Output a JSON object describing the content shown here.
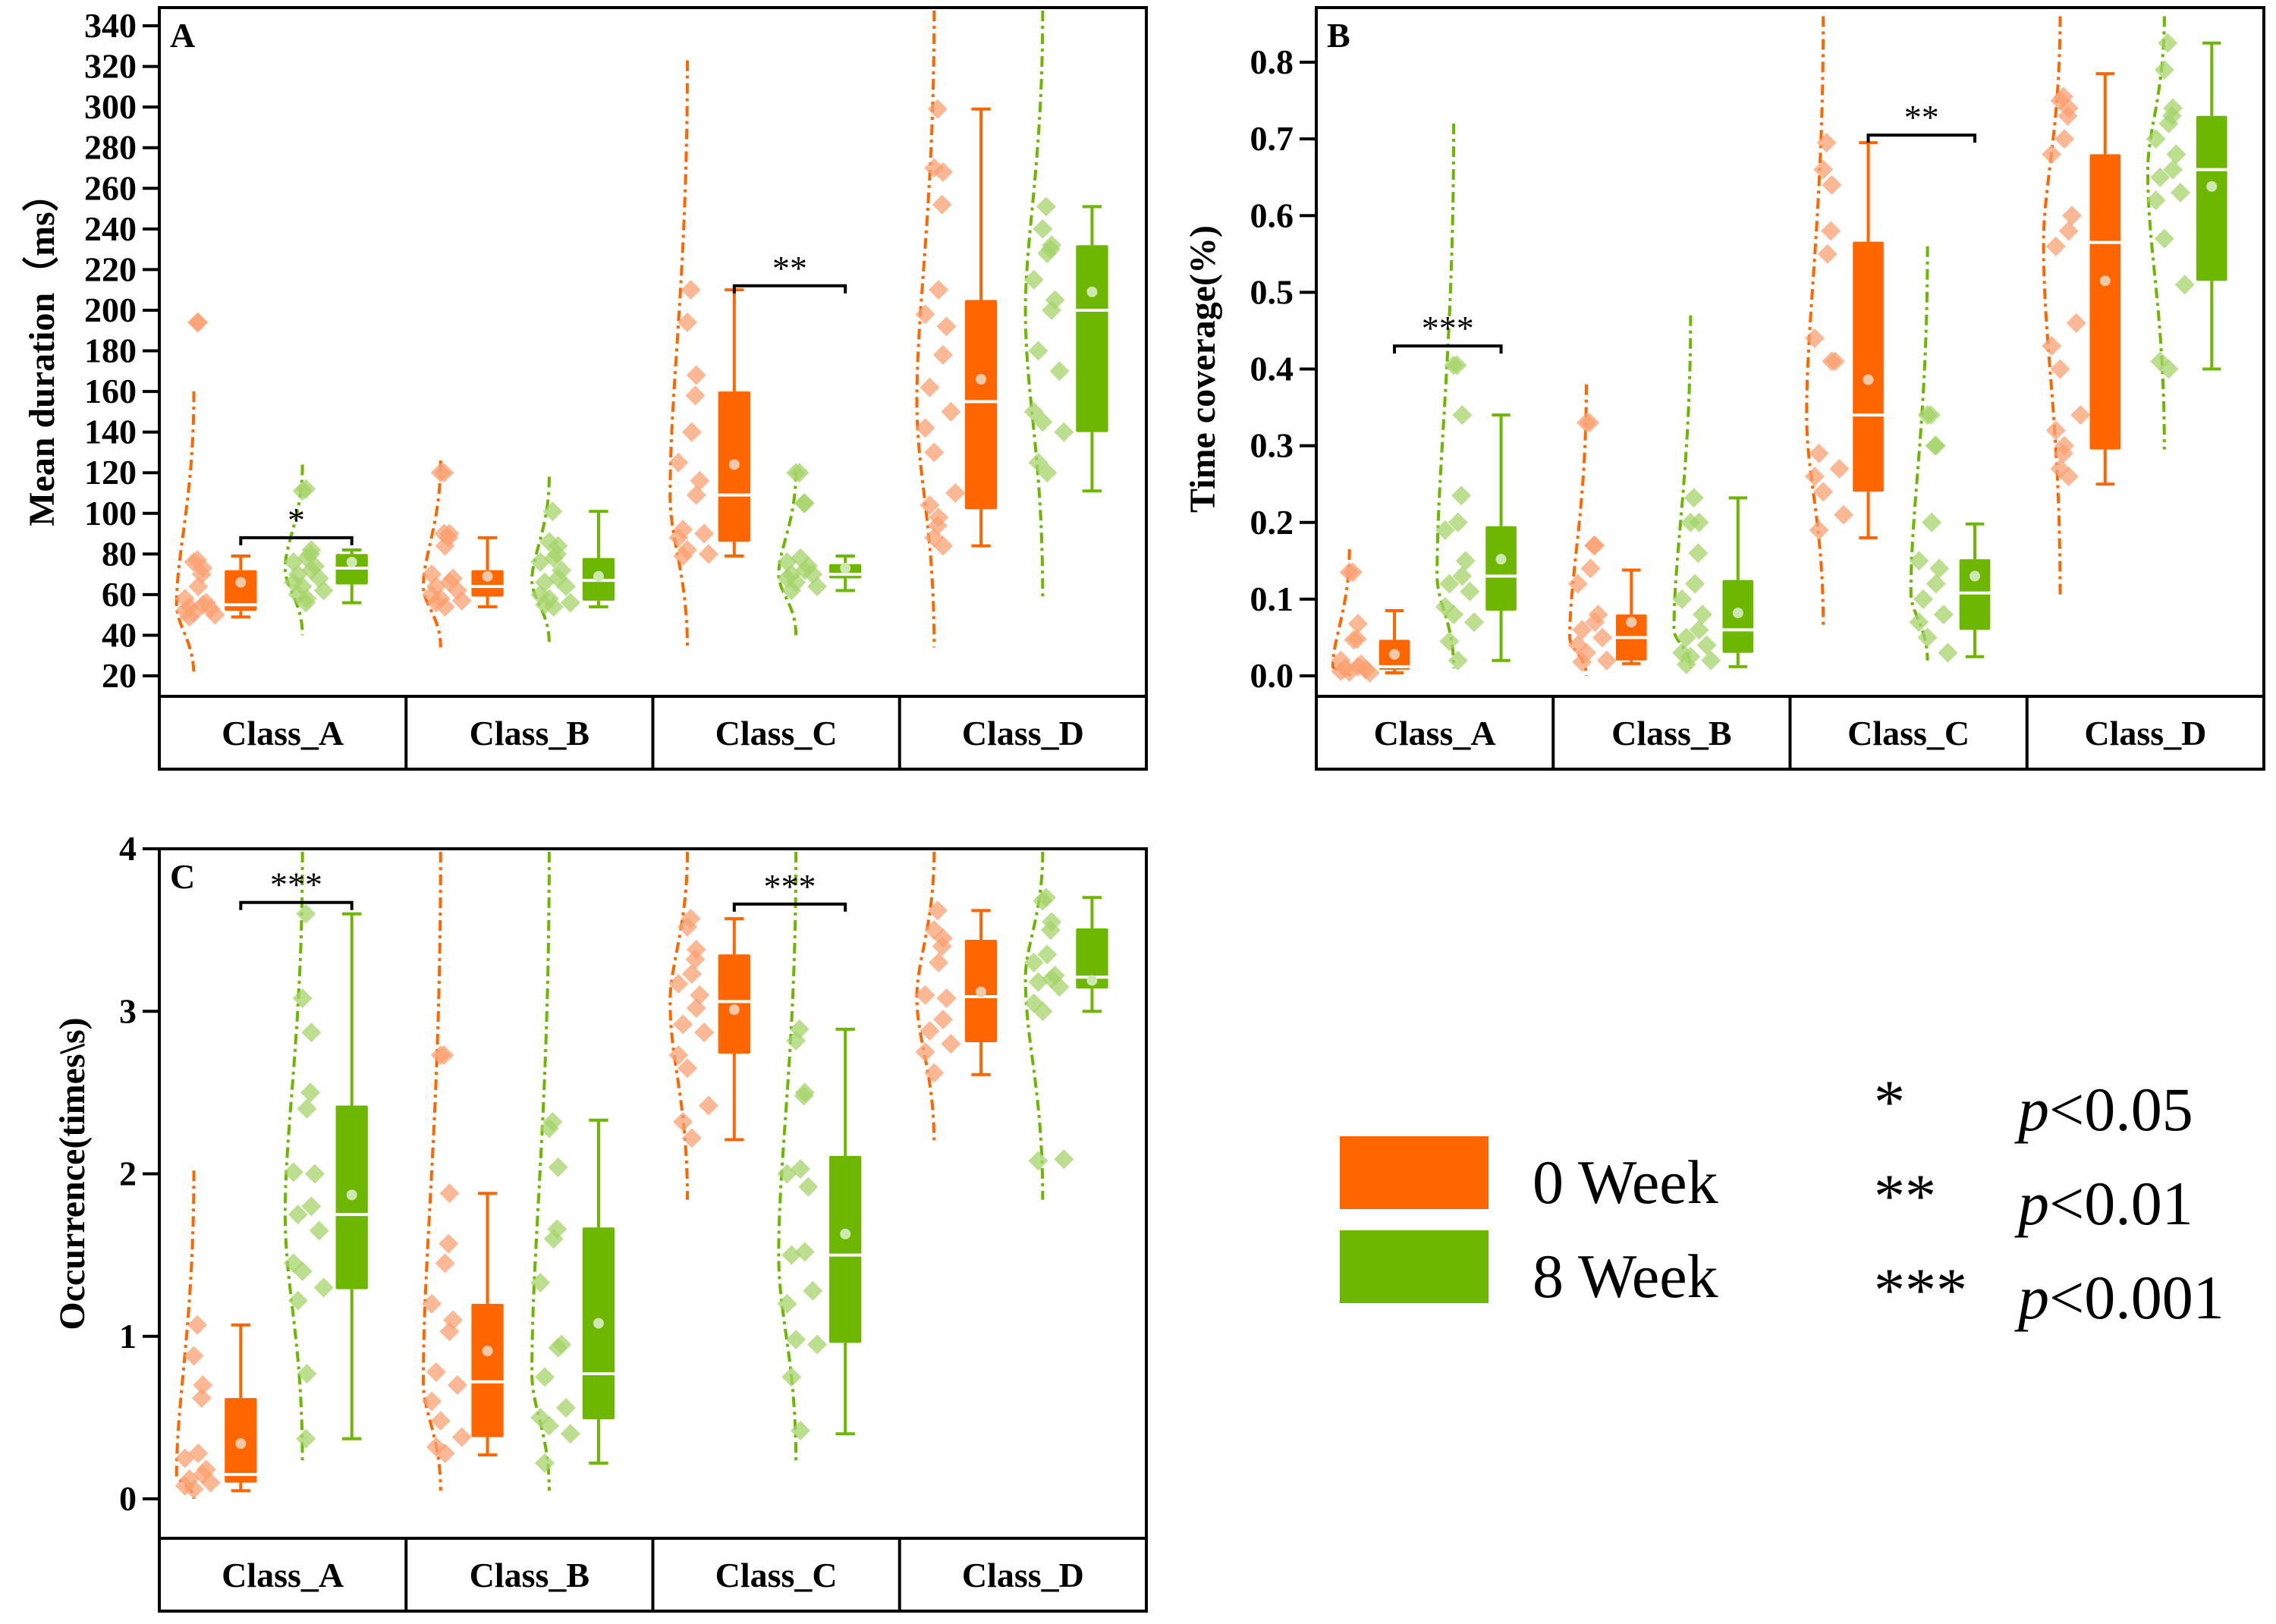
{
  "colors": {
    "week0": "#FF6600",
    "week0_point": "#F9A070",
    "week8": "#6EB700",
    "week8_point": "#A5D46A",
    "median": "#FFFFFF",
    "mean_dot": "#F4C9A8",
    "mean_dot_green": "#CFE8B2",
    "axis": "#000000"
  },
  "legend": {
    "groups": [
      {
        "label": "0 Week",
        "color_key": "week0"
      },
      {
        "label": "8 Week",
        "color_key": "week8"
      }
    ],
    "significance": [
      {
        "stars": "*",
        "p": "p",
        "text": "<0.05"
      },
      {
        "stars": "**",
        "p": "p",
        "text": "<0.01"
      },
      {
        "stars": "***",
        "p": "p",
        "text": "<0.001"
      }
    ]
  },
  "chart_data": [
    {
      "type": "box",
      "panel": "A",
      "title": "",
      "ylabel": "Mean duration（ms）",
      "xlabel": "",
      "ylim": [
        20,
        340
      ],
      "yticks": [
        20,
        40,
        60,
        80,
        100,
        120,
        140,
        160,
        180,
        200,
        220,
        240,
        260,
        280,
        300,
        320,
        340
      ],
      "categories": [
        "Class_A",
        "Class_B",
        "Class_C",
        "Class_D"
      ],
      "series": [
        {
          "name": "0 Week",
          "boxes": [
            {
              "min": 49,
              "q1": 52,
              "median": 55,
              "q3": 72,
              "max": 79,
              "mean": 66,
              "points": [
                77,
                76,
                73,
                70,
                64,
                58,
                56,
                55,
                54,
                53,
                52,
                51,
                50,
                49,
                194,
                194
              ],
              "kde": [
                20,
                160
              ]
            },
            {
              "min": 54,
              "q1": 59,
              "median": 64,
              "q3": 72,
              "max": 88,
              "mean": 69,
              "points": [
                120,
                120,
                90,
                88,
                84,
                70,
                68,
                66,
                64,
                62,
                60,
                58,
                57,
                56,
                54,
                90
              ],
              "kde": [
                34,
                126
              ]
            },
            {
              "min": 79,
              "q1": 86,
              "median": 109,
              "q3": 160,
              "max": 210,
              "mean": 124,
              "points": [
                210,
                194,
                168,
                158,
                140,
                125,
                116,
                109,
                92,
                90,
                88,
                82,
                80,
                79
              ],
              "kde": [
                33,
                323
              ]
            },
            {
              "min": 84,
              "q1": 102,
              "median": 155,
              "q3": 205,
              "max": 299,
              "mean": 166,
              "points": [
                299,
                270,
                268,
                252,
                210,
                198,
                192,
                178,
                162,
                150,
                142,
                130,
                110,
                104,
                98,
                94,
                88,
                84
              ],
              "kde": [
                34,
                360
              ]
            }
          ],
          "kde_center_offset": -0.32
        },
        {
          "name": "8 Week",
          "boxes": [
            {
              "min": 56,
              "q1": 65,
              "median": 73,
              "q3": 80,
              "max": 82,
              "mean": 76,
              "points": [
                112,
                111,
                82,
                80,
                78,
                76,
                74,
                72,
                70,
                68,
                66,
                64,
                62,
                60,
                58,
                56
              ],
              "kde": [
                40,
                124
              ]
            },
            {
              "min": 54,
              "q1": 57,
              "median": 67,
              "q3": 78,
              "max": 101,
              "mean": 69,
              "points": [
                101,
                86,
                84,
                80,
                78,
                76,
                72,
                68,
                66,
                64,
                60,
                58,
                56,
                55,
                54
              ],
              "kde": [
                36,
                118
              ]
            },
            {
              "min": 62,
              "q1": 68,
              "median": 70,
              "q3": 75,
              "max": 79,
              "mean": 73,
              "points": [
                120,
                120,
                105,
                105,
                78,
                76,
                74,
                72,
                70,
                70,
                68,
                66,
                64,
                62
              ],
              "kde": [
                40,
                121
              ]
            },
            {
              "min": 111,
              "q1": 140,
              "median": 200,
              "q3": 232,
              "max": 251,
              "mean": 209,
              "points": [
                251,
                240,
                232,
                230,
                228,
                215,
                205,
                200,
                180,
                170,
                150,
                145,
                140,
                125,
                120
              ],
              "kde": [
                58,
                360
              ]
            }
          ],
          "kde_center_offset": -0.32
        }
      ],
      "significance": [
        {
          "category": "Class_A",
          "label": "*",
          "y": 88
        },
        {
          "category": "Class_C",
          "label": "**",
          "y": 212
        }
      ]
    },
    {
      "type": "box",
      "panel": "B",
      "title": "",
      "ylabel": "Time coverage(%)",
      "xlabel": "",
      "ylim": [
        0.0,
        0.8
      ],
      "yticks": [
        0.0,
        0.1,
        0.2,
        0.3,
        0.4,
        0.5,
        0.6,
        0.7,
        0.8
      ],
      "categories": [
        "Class_A",
        "Class_B",
        "Class_C",
        "Class_D"
      ],
      "series": [
        {
          "name": "0 Week",
          "boxes": [
            {
              "min": 0.004,
              "q1": 0.008,
              "median": 0.012,
              "q3": 0.047,
              "max": 0.085,
              "mean": 0.028,
              "points": [
                0.135,
                0.135,
                0.068,
                0.048,
                0.047,
                0.02,
                0.015,
                0.012,
                0.01,
                0.008,
                0.006,
                0.005,
                0.004
              ],
              "kde": [
                0.0,
                0.165
              ]
            },
            {
              "min": 0.016,
              "q1": 0.02,
              "median": 0.05,
              "q3": 0.08,
              "max": 0.138,
              "mean": 0.07,
              "points": [
                0.33,
                0.33,
                0.17,
                0.17,
                0.14,
                0.12,
                0.08,
                0.07,
                0.06,
                0.05,
                0.04,
                0.03,
                0.02,
                0.018
              ],
              "kde": [
                0.0,
                0.38
              ]
            },
            {
              "min": 0.18,
              "q1": 0.24,
              "median": 0.34,
              "q3": 0.566,
              "max": 0.695,
              "mean": 0.386,
              "points": [
                0.695,
                0.66,
                0.64,
                0.58,
                0.55,
                0.44,
                0.41,
                0.41,
                0.29,
                0.27,
                0.26,
                0.24,
                0.21,
                0.19
              ],
              "kde": [
                0.065,
                0.86
              ]
            },
            {
              "min": 0.25,
              "q1": 0.295,
              "median": 0.565,
              "q3": 0.68,
              "max": 0.785,
              "mean": 0.515,
              "points": [
                0.755,
                0.75,
                0.74,
                0.73,
                0.7,
                0.68,
                0.6,
                0.58,
                0.56,
                0.46,
                0.43,
                0.4,
                0.34,
                0.32,
                0.3,
                0.29,
                0.27,
                0.26
              ],
              "kde": [
                0.105,
                0.86
              ]
            }
          ]
        },
        {
          "name": "8 Week",
          "boxes": [
            {
              "min": 0.02,
              "q1": 0.085,
              "median": 0.13,
              "q3": 0.195,
              "max": 0.34,
              "mean": 0.152,
              "points": [
                0.405,
                0.405,
                0.34,
                0.235,
                0.2,
                0.19,
                0.15,
                0.13,
                0.12,
                0.11,
                0.09,
                0.08,
                0.07,
                0.045,
                0.02
              ],
              "kde": [
                0.01,
                0.72
              ]
            },
            {
              "min": 0.012,
              "q1": 0.03,
              "median": 0.06,
              "q3": 0.125,
              "max": 0.232,
              "mean": 0.082,
              "points": [
                0.232,
                0.2,
                0.2,
                0.16,
                0.12,
                0.1,
                0.08,
                0.06,
                0.05,
                0.04,
                0.03,
                0.025,
                0.02,
                0.015
              ],
              "kde": [
                0.01,
                0.47
              ]
            },
            {
              "min": 0.025,
              "q1": 0.06,
              "median": 0.108,
              "q3": 0.152,
              "max": 0.198,
              "mean": 0.13,
              "points": [
                0.34,
                0.34,
                0.3,
                0.3,
                0.2,
                0.15,
                0.14,
                0.12,
                0.1,
                0.08,
                0.07,
                0.05,
                0.03
              ],
              "kde": [
                0.02,
                0.56
              ]
            },
            {
              "min": 0.4,
              "q1": 0.515,
              "median": 0.66,
              "q3": 0.73,
              "max": 0.825,
              "mean": 0.638,
              "points": [
                0.825,
                0.79,
                0.74,
                0.73,
                0.72,
                0.7,
                0.68,
                0.66,
                0.65,
                0.63,
                0.62,
                0.57,
                0.51,
                0.41,
                0.4
              ],
              "kde": [
                0.295,
                0.86
              ]
            }
          ]
        }
      ],
      "significance": [
        {
          "category": "Class_A",
          "label": "***",
          "y": 0.43
        },
        {
          "category": "Class_C",
          "label": "**",
          "y": 0.705
        }
      ]
    },
    {
      "type": "box",
      "panel": "C",
      "title": "",
      "ylabel": "Occurrence(times\\s)",
      "xlabel": "",
      "ylim": [
        0,
        4
      ],
      "yticks": [
        0,
        1,
        2,
        3,
        4
      ],
      "categories": [
        "Class_A",
        "Class_B",
        "Class_C",
        "Class_D"
      ],
      "series": [
        {
          "name": "0 Week",
          "boxes": [
            {
              "min": 0.05,
              "q1": 0.1,
              "median": 0.15,
              "q3": 0.62,
              "max": 1.07,
              "mean": 0.34,
              "points": [
                1.07,
                0.88,
                0.7,
                0.62,
                0.28,
                0.25,
                0.18,
                0.15,
                0.12,
                0.1,
                0.08,
                0.06
              ],
              "kde": [
                0.0,
                2.02
              ]
            },
            {
              "min": 0.27,
              "q1": 0.38,
              "median": 0.72,
              "q3": 1.2,
              "max": 1.88,
              "mean": 0.91,
              "points": [
                2.73,
                2.73,
                1.88,
                1.57,
                1.45,
                1.2,
                1.1,
                1.03,
                0.78,
                0.7,
                0.6,
                0.48,
                0.38,
                0.32,
                0.28
              ],
              "kde": [
                0.05,
                4.0
              ]
            },
            {
              "min": 2.21,
              "q1": 2.74,
              "median": 3.06,
              "q3": 3.35,
              "max": 3.57,
              "mean": 3.01,
              "points": [
                3.57,
                3.52,
                3.38,
                3.32,
                3.23,
                3.17,
                3.1,
                3.02,
                2.92,
                2.87,
                2.73,
                2.65,
                2.42,
                2.32,
                2.22
              ],
              "kde": [
                1.84,
                4.0
              ]
            },
            {
              "min": 2.61,
              "q1": 2.81,
              "median": 3.09,
              "q3": 3.44,
              "max": 3.62,
              "mean": 3.12,
              "points": [
                3.62,
                3.5,
                3.45,
                3.4,
                3.3,
                3.1,
                3.08,
                2.95,
                2.88,
                2.8,
                2.75,
                2.62
              ],
              "kde": [
                2.18,
                4.0
              ]
            }
          ]
        },
        {
          "name": "8 Week",
          "boxes": [
            {
              "min": 0.37,
              "q1": 1.29,
              "median": 1.75,
              "q3": 2.42,
              "max": 3.6,
              "mean": 1.87,
              "points": [
                3.6,
                3.08,
                2.87,
                2.5,
                2.4,
                2.01,
                2.0,
                1.8,
                1.75,
                1.65,
                1.45,
                1.4,
                1.3,
                1.22,
                0.77,
                0.37
              ],
              "kde": [
                0.22,
                4.0
              ]
            },
            {
              "min": 0.22,
              "q1": 0.49,
              "median": 0.77,
              "q3": 1.67,
              "max": 2.33,
              "mean": 1.08,
              "points": [
                2.32,
                2.28,
                2.04,
                1.66,
                1.6,
                1.33,
                0.95,
                0.93,
                0.75,
                0.56,
                0.5,
                0.45,
                0.4,
                0.22
              ],
              "kde": [
                0.05,
                4.0
              ]
            },
            {
              "min": 0.4,
              "q1": 0.96,
              "median": 1.5,
              "q3": 2.11,
              "max": 2.89,
              "mean": 1.63,
              "points": [
                2.89,
                2.82,
                2.5,
                2.48,
                2.03,
                2.0,
                1.92,
                1.52,
                1.5,
                1.28,
                1.2,
                0.98,
                0.95,
                0.75,
                0.42
              ],
              "kde": [
                0.22,
                4.0
              ]
            },
            {
              "min": 3.0,
              "q1": 3.14,
              "median": 3.21,
              "q3": 3.51,
              "max": 3.7,
              "mean": 3.19,
              "points": [
                3.7,
                3.68,
                3.55,
                3.5,
                3.35,
                3.3,
                3.22,
                3.2,
                3.18,
                3.15,
                3.05,
                3.0,
                2.09,
                2.08
              ],
              "kde": [
                1.84,
                4.0
              ]
            }
          ]
        }
      ],
      "significance": [
        {
          "category": "Class_A",
          "label": "***",
          "y": 3.67
        },
        {
          "category": "Class_C",
          "label": "***",
          "y": 3.66
        }
      ]
    }
  ]
}
